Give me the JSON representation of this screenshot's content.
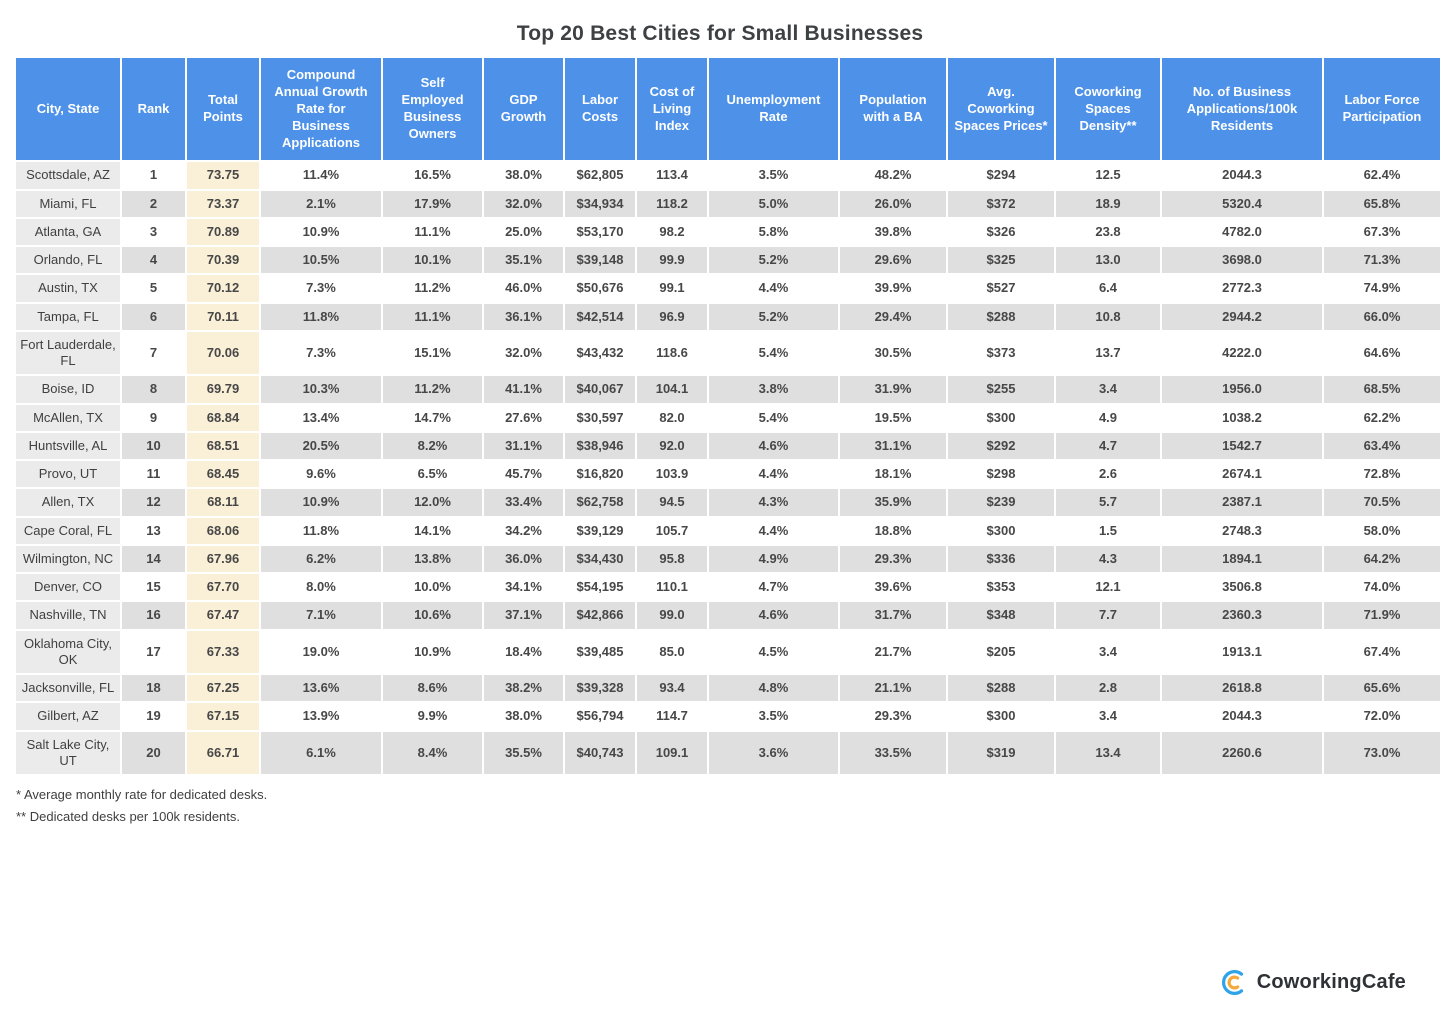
{
  "title": "Top 20 Best Cities for Small Businesses",
  "chart_data": {
    "type": "table",
    "columns": [
      "City, State",
      "Rank",
      "Total Points",
      "Compound Annual Growth Rate for Business Applications",
      "Self Employed Business Owners",
      "GDP Growth",
      "Labor Costs",
      "Cost of Living Index",
      "Unemployment Rate",
      "Population with a BA",
      "Avg. Coworking Spaces Prices*",
      "Coworking Spaces Density**",
      "No. of Business Applications/100k Residents",
      "Labor Force Participation"
    ],
    "rows": [
      [
        "Scottsdale, AZ",
        "1",
        "73.75",
        "11.4%",
        "16.5%",
        "38.0%",
        "$62,805",
        "113.4",
        "3.5%",
        "48.2%",
        "$294",
        "12.5",
        "2044.3",
        "62.4%"
      ],
      [
        "Miami, FL",
        "2",
        "73.37",
        "2.1%",
        "17.9%",
        "32.0%",
        "$34,934",
        "118.2",
        "5.0%",
        "26.0%",
        "$372",
        "18.9",
        "5320.4",
        "65.8%"
      ],
      [
        "Atlanta, GA",
        "3",
        "70.89",
        "10.9%",
        "11.1%",
        "25.0%",
        "$53,170",
        "98.2",
        "5.8%",
        "39.8%",
        "$326",
        "23.8",
        "4782.0",
        "67.3%"
      ],
      [
        "Orlando, FL",
        "4",
        "70.39",
        "10.5%",
        "10.1%",
        "35.1%",
        "$39,148",
        "99.9",
        "5.2%",
        "29.6%",
        "$325",
        "13.0",
        "3698.0",
        "71.3%"
      ],
      [
        "Austin, TX",
        "5",
        "70.12",
        "7.3%",
        "11.2%",
        "46.0%",
        "$50,676",
        "99.1",
        "4.4%",
        "39.9%",
        "$527",
        "6.4",
        "2772.3",
        "74.9%"
      ],
      [
        "Tampa, FL",
        "6",
        "70.11",
        "11.8%",
        "11.1%",
        "36.1%",
        "$42,514",
        "96.9",
        "5.2%",
        "29.4%",
        "$288",
        "10.8",
        "2944.2",
        "66.0%"
      ],
      [
        "Fort Lauderdale, FL",
        "7",
        "70.06",
        "7.3%",
        "15.1%",
        "32.0%",
        "$43,432",
        "118.6",
        "5.4%",
        "30.5%",
        "$373",
        "13.7",
        "4222.0",
        "64.6%"
      ],
      [
        "Boise, ID",
        "8",
        "69.79",
        "10.3%",
        "11.2%",
        "41.1%",
        "$40,067",
        "104.1",
        "3.8%",
        "31.9%",
        "$255",
        "3.4",
        "1956.0",
        "68.5%"
      ],
      [
        "McAllen, TX",
        "9",
        "68.84",
        "13.4%",
        "14.7%",
        "27.6%",
        "$30,597",
        "82.0",
        "5.4%",
        "19.5%",
        "$300",
        "4.9",
        "1038.2",
        "62.2%"
      ],
      [
        "Huntsville, AL",
        "10",
        "68.51",
        "20.5%",
        "8.2%",
        "31.1%",
        "$38,946",
        "92.0",
        "4.6%",
        "31.1%",
        "$292",
        "4.7",
        "1542.7",
        "63.4%"
      ],
      [
        "Provo, UT",
        "11",
        "68.45",
        "9.6%",
        "6.5%",
        "45.7%",
        "$16,820",
        "103.9",
        "4.4%",
        "18.1%",
        "$298",
        "2.6",
        "2674.1",
        "72.8%"
      ],
      [
        "Allen, TX",
        "12",
        "68.11",
        "10.9%",
        "12.0%",
        "33.4%",
        "$62,758",
        "94.5",
        "4.3%",
        "35.9%",
        "$239",
        "5.7",
        "2387.1",
        "70.5%"
      ],
      [
        "Cape Coral, FL",
        "13",
        "68.06",
        "11.8%",
        "14.1%",
        "34.2%",
        "$39,129",
        "105.7",
        "4.4%",
        "18.8%",
        "$300",
        "1.5",
        "2748.3",
        "58.0%"
      ],
      [
        "Wilmington, NC",
        "14",
        "67.96",
        "6.2%",
        "13.8%",
        "36.0%",
        "$34,430",
        "95.8",
        "4.9%",
        "29.3%",
        "$336",
        "4.3",
        "1894.1",
        "64.2%"
      ],
      [
        "Denver, CO",
        "15",
        "67.70",
        "8.0%",
        "10.0%",
        "34.1%",
        "$54,195",
        "110.1",
        "4.7%",
        "39.6%",
        "$353",
        "12.1",
        "3506.8",
        "74.0%"
      ],
      [
        "Nashville, TN",
        "16",
        "67.47",
        "7.1%",
        "10.6%",
        "37.1%",
        "$42,866",
        "99.0",
        "4.6%",
        "31.7%",
        "$348",
        "7.7",
        "2360.3",
        "71.9%"
      ],
      [
        "Oklahoma City, OK",
        "17",
        "67.33",
        "19.0%",
        "10.9%",
        "18.4%",
        "$39,485",
        "85.0",
        "4.5%",
        "21.7%",
        "$205",
        "3.4",
        "1913.1",
        "67.4%"
      ],
      [
        "Jacksonville, FL",
        "18",
        "67.25",
        "13.6%",
        "8.6%",
        "38.2%",
        "$39,328",
        "93.4",
        "4.8%",
        "21.1%",
        "$288",
        "2.8",
        "2618.8",
        "65.6%"
      ],
      [
        "Gilbert, AZ",
        "19",
        "67.15",
        "13.9%",
        "9.9%",
        "38.0%",
        "$56,794",
        "114.7",
        "3.5%",
        "29.3%",
        "$300",
        "3.4",
        "2044.3",
        "72.0%"
      ],
      [
        "Salt Lake City, UT",
        "20",
        "66.71",
        "6.1%",
        "8.4%",
        "35.5%",
        "$40,743",
        "109.1",
        "3.6%",
        "33.5%",
        "$319",
        "13.4",
        "2260.6",
        "73.0%"
      ]
    ]
  },
  "footnotes": {
    "line1": "* Average monthly rate for dedicated desks.",
    "line2": "** Dedicated desks per 100k residents."
  },
  "logo": {
    "text": "CoworkingCafe"
  },
  "colors": {
    "header_bg": "#4d91e9",
    "header_text": "#ffffff",
    "row_alt_bg": "#dfdfdf",
    "city_column_bg": "#ebebeb",
    "total_points_column_bg": "#faf0d7",
    "body_text": "#474747",
    "logo_blue": "#2ea3e8",
    "logo_orange": "#f5a93b"
  }
}
